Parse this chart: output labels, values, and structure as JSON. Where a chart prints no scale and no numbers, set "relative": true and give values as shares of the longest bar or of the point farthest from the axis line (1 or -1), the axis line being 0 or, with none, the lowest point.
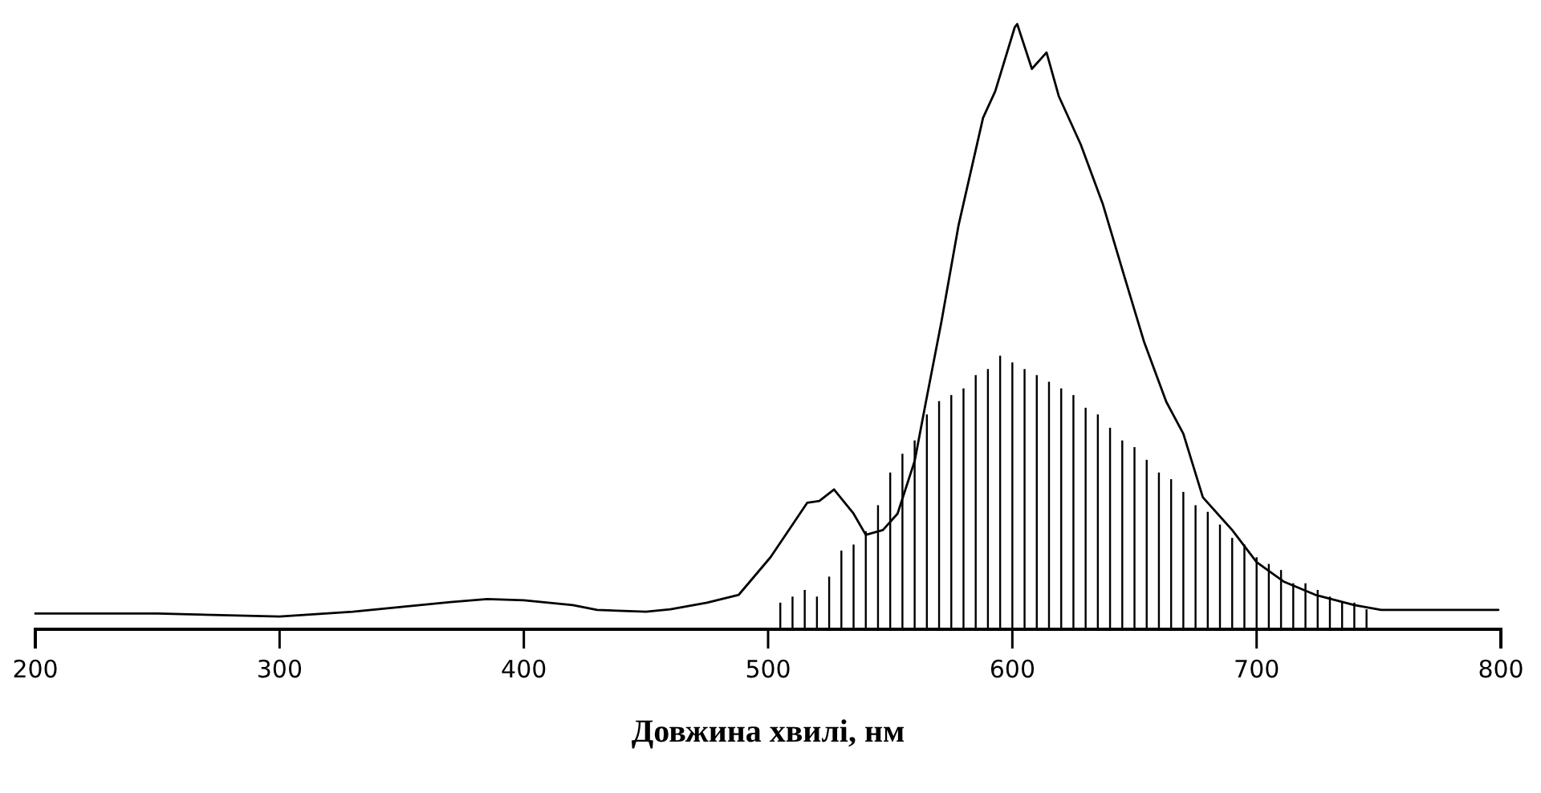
{
  "chart_data": {
    "type": "bar",
    "xlabel": "Довжина хвилі, нм",
    "relative": true,
    "xlim": [
      200,
      800
    ],
    "xticks": [
      200,
      300,
      400,
      500,
      600,
      700,
      800
    ],
    "series": [
      {
        "type": "line",
        "color": "#000000",
        "x": [
          200,
          250,
          300,
          330,
          350,
          370,
          385,
          400,
          420,
          430,
          450,
          460,
          475,
          488,
          501,
          516,
          521,
          527,
          535,
          540,
          547,
          553,
          560,
          565,
          571,
          578,
          588,
          593,
          601,
          602,
          608,
          614,
          619,
          628,
          637,
          646,
          654,
          663,
          670,
          678,
          690,
          700,
          711,
          724,
          740,
          751,
          799
        ],
        "values": [
          0.026,
          0.026,
          0.021,
          0.029,
          0.037,
          0.045,
          0.05,
          0.048,
          0.04,
          0.032,
          0.029,
          0.033,
          0.044,
          0.057,
          0.119,
          0.209,
          0.212,
          0.231,
          0.191,
          0.156,
          0.164,
          0.191,
          0.278,
          0.384,
          0.509,
          0.668,
          0.845,
          0.889,
          0.995,
          1,
          0.926,
          0.953,
          0.881,
          0.801,
          0.703,
          0.581,
          0.474,
          0.376,
          0.323,
          0.218,
          0.164,
          0.111,
          0.079,
          0.057,
          0.04,
          0.032,
          0.032
        ]
      },
      {
        "color": "#000000",
        "x": [
          505,
          510,
          515,
          520,
          525,
          530,
          535,
          540,
          545,
          550,
          555,
          560,
          565,
          570,
          575,
          580,
          585,
          590,
          595,
          600,
          605,
          610,
          615,
          620,
          625,
          630,
          635,
          640,
          645,
          650,
          655,
          660,
          665,
          670,
          675,
          680,
          685,
          690,
          695,
          700,
          705,
          710,
          715,
          720,
          725,
          730,
          735,
          740,
          745
        ],
        "values": [
          0.044,
          0.054,
          0.065,
          0.054,
          0.087,
          0.13,
          0.14,
          0.162,
          0.205,
          0.259,
          0.29,
          0.312,
          0.355,
          0.377,
          0.387,
          0.398,
          0.42,
          0.43,
          0.452,
          0.441,
          0.43,
          0.42,
          0.409,
          0.398,
          0.387,
          0.366,
          0.355,
          0.333,
          0.312,
          0.301,
          0.28,
          0.259,
          0.248,
          0.227,
          0.205,
          0.194,
          0.173,
          0.151,
          0.14,
          0.119,
          0.108,
          0.098,
          0.076,
          0.076,
          0.065,
          0.054,
          0.044,
          0.044,
          0.033
        ]
      }
    ]
  }
}
